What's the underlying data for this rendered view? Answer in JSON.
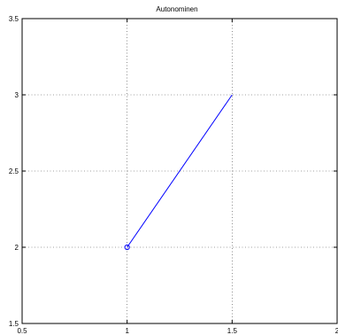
{
  "chart_data": {
    "type": "line",
    "title": "Autonominen",
    "xlabel": "",
    "ylabel": "",
    "xlim": [
      0.5,
      2
    ],
    "ylim": [
      1.5,
      3.5
    ],
    "xticks": [
      0.5,
      1,
      1.5,
      2
    ],
    "yticks": [
      1.5,
      2,
      2.5,
      3,
      3.5
    ],
    "xtick_labels": [
      "0.5",
      "1",
      "1.5",
      "2"
    ],
    "ytick_labels": [
      "1.5",
      "2",
      "2.5",
      "3",
      "3.5"
    ],
    "grid": true,
    "series": [
      {
        "color": "#0000ff",
        "x": [
          1,
          1.5
        ],
        "y": [
          2,
          3
        ],
        "start_marker": "circle"
      }
    ]
  }
}
